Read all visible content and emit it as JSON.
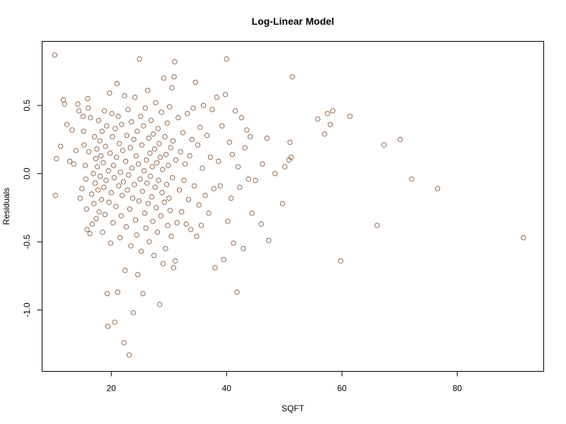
{
  "chart_data": {
    "type": "scatter",
    "title": "Log-Linear Model",
    "xlabel": "SQFT",
    "ylabel": "Residuals",
    "xlim": [
      8,
      95
    ],
    "ylim": [
      -1.45,
      0.97
    ],
    "x_ticks": [
      20,
      40,
      60,
      80
    ],
    "x_tick_labels": [
      "20",
      "40",
      "60",
      "80"
    ],
    "y_ticks": [
      -1.0,
      -0.5,
      0.0,
      0.5
    ],
    "y_tick_labels": [
      "-1.0",
      "-0.5",
      "0.0",
      "0.5"
    ],
    "grid": false,
    "legend": "none",
    "marker_color": "#8a5a3c",
    "points": [
      {
        "x": 10.2,
        "y": 0.87
      },
      {
        "x": 10.3,
        "y": -0.16
      },
      {
        "x": 10.5,
        "y": 0.11
      },
      {
        "x": 11.2,
        "y": 0.2
      },
      {
        "x": 11.7,
        "y": 0.54
      },
      {
        "x": 11.9,
        "y": 0.51
      },
      {
        "x": 12.3,
        "y": 0.36
      },
      {
        "x": 12.8,
        "y": 0.09
      },
      {
        "x": 13.2,
        "y": 0.32
      },
      {
        "x": 13.5,
        "y": 0.07
      },
      {
        "x": 13.9,
        "y": 0.17
      },
      {
        "x": 14.2,
        "y": 0.51
      },
      {
        "x": 14.4,
        "y": 0.46
      },
      {
        "x": 14.6,
        "y": -0.18
      },
      {
        "x": 14.9,
        "y": -0.11
      },
      {
        "x": 15.1,
        "y": 0.42
      },
      {
        "x": 15.2,
        "y": 0.31
      },
      {
        "x": 15.3,
        "y": 0.21
      },
      {
        "x": 15.5,
        "y": 0.06
      },
      {
        "x": 15.6,
        "y": -0.04
      },
      {
        "x": 15.7,
        "y": -0.26
      },
      {
        "x": 15.8,
        "y": -0.41
      },
      {
        "x": 15.9,
        "y": 0.55
      },
      {
        "x": 16.0,
        "y": 0.48
      },
      {
        "x": 16.1,
        "y": 0.16
      },
      {
        "x": 16.3,
        "y": -0.44
      },
      {
        "x": 16.4,
        "y": 0.41
      },
      {
        "x": 16.6,
        "y": -0.15
      },
      {
        "x": 16.7,
        "y": -0.37
      },
      {
        "x": 16.9,
        "y": 0.0
      },
      {
        "x": 17.0,
        "y": -0.22
      },
      {
        "x": 17.1,
        "y": 0.27
      },
      {
        "x": 17.2,
        "y": -0.07
      },
      {
        "x": 17.3,
        "y": 0.11
      },
      {
        "x": 17.4,
        "y": -0.33
      },
      {
        "x": 17.5,
        "y": 0.18
      },
      {
        "x": 17.6,
        "y": 0.05
      },
      {
        "x": 17.7,
        "y": -0.12
      },
      {
        "x": 17.8,
        "y": 0.39
      },
      {
        "x": 17.9,
        "y": -0.28
      },
      {
        "x": 18.0,
        "y": 0.24
      },
      {
        "x": 18.1,
        "y": -0.02
      },
      {
        "x": 18.2,
        "y": 0.13
      },
      {
        "x": 18.3,
        "y": -0.19
      },
      {
        "x": 18.4,
        "y": 0.31
      },
      {
        "x": 18.5,
        "y": -0.43
      },
      {
        "x": 18.6,
        "y": 0.08
      },
      {
        "x": 18.7,
        "y": -0.1
      },
      {
        "x": 18.8,
        "y": 0.46
      },
      {
        "x": 18.9,
        "y": -0.3
      },
      {
        "x": 19.0,
        "y": 0.2
      },
      {
        "x": 19.1,
        "y": -0.05
      },
      {
        "x": 19.2,
        "y": 0.35
      },
      {
        "x": 19.3,
        "y": -0.88
      },
      {
        "x": 19.4,
        "y": -1.12
      },
      {
        "x": 19.5,
        "y": 0.02
      },
      {
        "x": 19.6,
        "y": -0.21
      },
      {
        "x": 19.7,
        "y": 0.59
      },
      {
        "x": 19.8,
        "y": 0.15
      },
      {
        "x": 19.9,
        "y": -0.51
      },
      {
        "x": 20.0,
        "y": -0.14
      },
      {
        "x": 20.1,
        "y": 0.44
      },
      {
        "x": 20.2,
        "y": 0.27
      },
      {
        "x": 20.3,
        "y": -0.36
      },
      {
        "x": 20.4,
        "y": 0.06
      },
      {
        "x": 20.5,
        "y": -0.03
      },
      {
        "x": 20.6,
        "y": -1.09
      },
      {
        "x": 20.7,
        "y": 0.33
      },
      {
        "x": 20.8,
        "y": -0.24
      },
      {
        "x": 20.9,
        "y": 0.12
      },
      {
        "x": 21.0,
        "y": 0.66
      },
      {
        "x": 21.1,
        "y": -0.87
      },
      {
        "x": 21.2,
        "y": 0.42
      },
      {
        "x": 21.3,
        "y": -0.09
      },
      {
        "x": 21.4,
        "y": 0.22
      },
      {
        "x": 21.5,
        "y": -0.47
      },
      {
        "x": 21.6,
        "y": 0.01
      },
      {
        "x": 21.7,
        "y": -0.31
      },
      {
        "x": 21.8,
        "y": 0.36
      },
      {
        "x": 21.9,
        "y": -0.16
      },
      {
        "x": 22.0,
        "y": 0.17
      },
      {
        "x": 22.1,
        "y": -0.06
      },
      {
        "x": 22.2,
        "y": -1.24
      },
      {
        "x": 22.3,
        "y": 0.57
      },
      {
        "x": 22.4,
        "y": -0.71
      },
      {
        "x": 22.5,
        "y": 0.09
      },
      {
        "x": 22.6,
        "y": -0.39
      },
      {
        "x": 22.7,
        "y": 0.28
      },
      {
        "x": 22.8,
        "y": -0.12
      },
      {
        "x": 22.9,
        "y": 0.47
      },
      {
        "x": 23.0,
        "y": -0.01
      },
      {
        "x": 23.1,
        "y": -1.33
      },
      {
        "x": 23.2,
        "y": -0.26
      },
      {
        "x": 23.3,
        "y": 0.19
      },
      {
        "x": 23.4,
        "y": -0.53
      },
      {
        "x": 23.5,
        "y": 0.38
      },
      {
        "x": 23.6,
        "y": 0.04
      },
      {
        "x": 23.7,
        "y": -0.18
      },
      {
        "x": 23.8,
        "y": -1.02
      },
      {
        "x": 23.9,
        "y": 0.25
      },
      {
        "x": 24.0,
        "y": -0.08
      },
      {
        "x": 24.1,
        "y": 0.56
      },
      {
        "x": 24.2,
        "y": -0.34
      },
      {
        "x": 24.3,
        "y": 0.13
      },
      {
        "x": 24.4,
        "y": -0.45
      },
      {
        "x": 24.5,
        "y": 0.31
      },
      {
        "x": 24.6,
        "y": -0.74
      },
      {
        "x": 24.7,
        "y": 0.07
      },
      {
        "x": 24.8,
        "y": -0.2
      },
      {
        "x": 24.9,
        "y": 0.84
      },
      {
        "x": 25.0,
        "y": -0.04
      },
      {
        "x": 25.1,
        "y": 0.42
      },
      {
        "x": 25.2,
        "y": -0.57
      },
      {
        "x": 25.3,
        "y": 0.21
      },
      {
        "x": 25.4,
        "y": -0.13
      },
      {
        "x": 25.5,
        "y": -0.88
      },
      {
        "x": 25.6,
        "y": 0.35
      },
      {
        "x": 25.7,
        "y": 0.02
      },
      {
        "x": 25.8,
        "y": -0.29
      },
      {
        "x": 25.9,
        "y": 0.48
      },
      {
        "x": 26.0,
        "y": -0.4
      },
      {
        "x": 26.1,
        "y": 0.1
      },
      {
        "x": 26.2,
        "y": -0.07
      },
      {
        "x": 26.3,
        "y": 0.61
      },
      {
        "x": 26.4,
        "y": -0.22
      },
      {
        "x": 26.5,
        "y": 0.26
      },
      {
        "x": 26.6,
        "y": -0.5
      },
      {
        "x": 26.7,
        "y": 0.15
      },
      {
        "x": 26.8,
        "y": -0.02
      },
      {
        "x": 26.9,
        "y": 0.39
      },
      {
        "x": 27.0,
        "y": -0.17
      },
      {
        "x": 27.1,
        "y": 0.05
      },
      {
        "x": 27.2,
        "y": -0.35
      },
      {
        "x": 27.3,
        "y": 0.29
      },
      {
        "x": 27.4,
        "y": -0.6
      },
      {
        "x": 27.5,
        "y": 0.18
      },
      {
        "x": 27.6,
        "y": -0.1
      },
      {
        "x": 27.7,
        "y": 0.52
      },
      {
        "x": 27.8,
        "y": -0.25
      },
      {
        "x": 27.9,
        "y": 0.08
      },
      {
        "x": 28.0,
        "y": -0.43
      },
      {
        "x": 28.1,
        "y": 0.33
      },
      {
        "x": 28.2,
        "y": -0.05
      },
      {
        "x": 28.3,
        "y": 0.22
      },
      {
        "x": 28.4,
        "y": -0.96
      },
      {
        "x": 28.5,
        "y": 0.12
      },
      {
        "x": 28.6,
        "y": -0.31
      },
      {
        "x": 28.7,
        "y": 0.45
      },
      {
        "x": 28.8,
        "y": -0.14
      },
      {
        "x": 28.9,
        "y": 0.03
      },
      {
        "x": 29.0,
        "y": -0.66
      },
      {
        "x": 29.1,
        "y": 0.7
      },
      {
        "x": 29.2,
        "y": -0.21
      },
      {
        "x": 29.3,
        "y": 0.27
      },
      {
        "x": 29.4,
        "y": -0.55
      },
      {
        "x": 29.5,
        "y": 0.14
      },
      {
        "x": 29.6,
        "y": -0.08
      },
      {
        "x": 29.7,
        "y": 0.37
      },
      {
        "x": 29.8,
        "y": -0.38
      },
      {
        "x": 29.9,
        "y": 0.06
      },
      {
        "x": 30.0,
        "y": -0.18
      },
      {
        "x": 30.1,
        "y": 0.49
      },
      {
        "x": 30.2,
        "y": -0.27
      },
      {
        "x": 30.3,
        "y": 0.19
      },
      {
        "x": 30.4,
        "y": -0.46
      },
      {
        "x": 30.5,
        "y": 0.63
      },
      {
        "x": 30.6,
        "y": -0.03
      },
      {
        "x": 30.7,
        "y": 0.24
      },
      {
        "x": 30.8,
        "y": -0.69
      },
      {
        "x": 30.9,
        "y": 0.71
      },
      {
        "x": 31.0,
        "y": 0.82
      },
      {
        "x": 31.1,
        "y": -0.64
      },
      {
        "x": 31.2,
        "y": 0.1
      },
      {
        "x": 31.4,
        "y": -0.36
      },
      {
        "x": 31.6,
        "y": 0.41
      },
      {
        "x": 31.8,
        "y": -0.12
      },
      {
        "x": 32.0,
        "y": 0.16
      },
      {
        "x": 32.2,
        "y": -0.28
      },
      {
        "x": 32.4,
        "y": 0.3
      },
      {
        "x": 32.6,
        "y": -0.05
      },
      {
        "x": 32.8,
        "y": 0.07
      },
      {
        "x": 33.0,
        "y": -0.37
      },
      {
        "x": 33.2,
        "y": 0.44
      },
      {
        "x": 33.4,
        "y": -0.19
      },
      {
        "x": 33.6,
        "y": 0.13
      },
      {
        "x": 33.8,
        "y": -0.41
      },
      {
        "x": 34.0,
        "y": 0.25
      },
      {
        "x": 34.2,
        "y": 0.48
      },
      {
        "x": 34.4,
        "y": -0.09
      },
      {
        "x": 34.6,
        "y": 0.67
      },
      {
        "x": 34.8,
        "y": -0.46
      },
      {
        "x": 35.0,
        "y": 0.21
      },
      {
        "x": 35.2,
        "y": -0.23
      },
      {
        "x": 35.4,
        "y": 0.34
      },
      {
        "x": 35.6,
        "y": -0.38
      },
      {
        "x": 35.8,
        "y": 0.04
      },
      {
        "x": 36.0,
        "y": 0.5
      },
      {
        "x": 36.3,
        "y": -0.16
      },
      {
        "x": 36.6,
        "y": 0.28
      },
      {
        "x": 36.9,
        "y": -0.29
      },
      {
        "x": 37.2,
        "y": 0.12
      },
      {
        "x": 37.5,
        "y": 0.47
      },
      {
        "x": 37.8,
        "y": -0.11
      },
      {
        "x": 38.0,
        "y": -0.69
      },
      {
        "x": 38.3,
        "y": 0.56
      },
      {
        "x": 38.6,
        "y": 0.09
      },
      {
        "x": 38.9,
        "y": -0.09
      },
      {
        "x": 39.2,
        "y": 0.35
      },
      {
        "x": 39.5,
        "y": -0.63
      },
      {
        "x": 39.8,
        "y": 0.58
      },
      {
        "x": 40.0,
        "y": 0.84
      },
      {
        "x": 40.2,
        "y": -0.35
      },
      {
        "x": 40.5,
        "y": 0.23
      },
      {
        "x": 40.8,
        "y": -0.18
      },
      {
        "x": 41.0,
        "y": 0.14
      },
      {
        "x": 41.2,
        "y": -0.51
      },
      {
        "x": 41.5,
        "y": 0.46
      },
      {
        "x": 41.8,
        "y": -0.87
      },
      {
        "x": 42.0,
        "y": 0.05
      },
      {
        "x": 42.3,
        "y": -0.1
      },
      {
        "x": 42.6,
        "y": 0.41
      },
      {
        "x": 42.9,
        "y": -0.55
      },
      {
        "x": 43.2,
        "y": 0.19
      },
      {
        "x": 43.5,
        "y": 0.32
      },
      {
        "x": 43.8,
        "y": -0.04
      },
      {
        "x": 44.1,
        "y": 0.27
      },
      {
        "x": 44.4,
        "y": -0.29
      },
      {
        "x": 45.0,
        "y": -0.05
      },
      {
        "x": 46.0,
        "y": -0.37
      },
      {
        "x": 46.2,
        "y": 0.07
      },
      {
        "x": 47.0,
        "y": 0.26
      },
      {
        "x": 47.3,
        "y": -0.49
      },
      {
        "x": 48.4,
        "y": 0.0
      },
      {
        "x": 49.7,
        "y": -0.22
      },
      {
        "x": 50.1,
        "y": 0.05
      },
      {
        "x": 50.8,
        "y": 0.1
      },
      {
        "x": 51.2,
        "y": 0.12
      },
      {
        "x": 51.0,
        "y": 0.23
      },
      {
        "x": 51.4,
        "y": 0.71
      },
      {
        "x": 55.8,
        "y": 0.4
      },
      {
        "x": 57.0,
        "y": 0.29
      },
      {
        "x": 57.5,
        "y": 0.44
      },
      {
        "x": 58.0,
        "y": 0.36
      },
      {
        "x": 58.4,
        "y": 0.46
      },
      {
        "x": 59.8,
        "y": -0.64
      },
      {
        "x": 61.4,
        "y": 0.42
      },
      {
        "x": 66.1,
        "y": -0.38
      },
      {
        "x": 67.3,
        "y": 0.21
      },
      {
        "x": 70.1,
        "y": 0.25
      },
      {
        "x": 72.1,
        "y": -0.04
      },
      {
        "x": 76.6,
        "y": -0.11
      },
      {
        "x": 91.5,
        "y": -0.47
      }
    ]
  }
}
